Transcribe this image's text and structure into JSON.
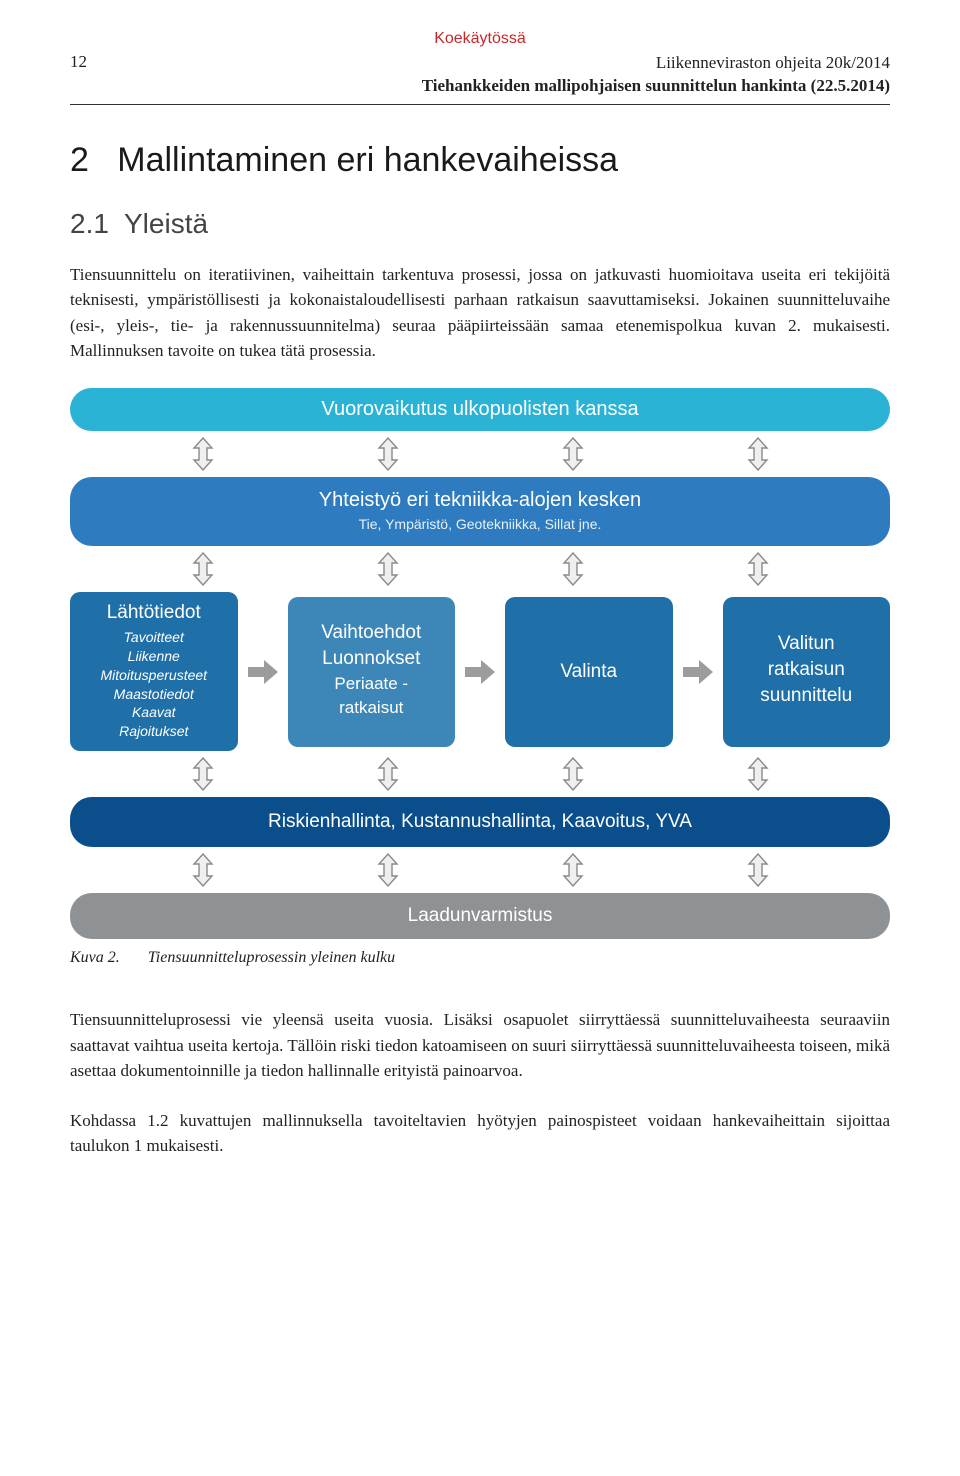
{
  "header": {
    "tag": "Koekäytössä",
    "tag_color": "#c82828",
    "page_number": "12",
    "pub_line1": "Liikenneviraston ohjeita 20k/2014",
    "pub_line2": "Tiehankkeiden mallipohjaisen suunnittelun hankinta (22.5.2014)"
  },
  "section": {
    "number": "2",
    "title": "Mallintaminen eri hankevaiheissa",
    "sub_number": "2.1",
    "sub_title": "Yleistä"
  },
  "body1": "Tiensuunnittelu on iteratiivinen, vaiheittain tarkentuva prosessi, jossa on jatkuvasti huomioitava useita eri tekijöitä teknisesti, ympäristöllisesti ja kokonaistaloudellisesti parhaan ratkaisun saavuttamiseksi. Jokainen suunnitteluvaihe (esi-, yleis-, tie- ja rakennussuunnitelma) seuraa pääpiirteissään samaa etenemispolkua kuvan 2. mukaisesti. Mallinnuksen tavoite on tukea tätä prosessia.",
  "diagram": {
    "colors": {
      "cyan": "#2bb3d6",
      "blue": "#2e7bbf",
      "box": "#1f6fa8",
      "darkblue": "#0a4f8c",
      "gray": "#8f9294",
      "boxsel": "#3d86b8",
      "h_arrow": "#9c9c9c",
      "v_arrow_fill": "#efefef",
      "v_arrow_stroke": "#8a8a8a"
    },
    "cyan_band": "Vuorovaikutus ulkopuolisten kanssa",
    "blue_band": "Yhteistyö eri tekniikka-alojen kesken",
    "blue_band_sub": "Tie, Ympäristö, Geotekniikka, Sillat jne.",
    "boxes": {
      "b1_title": "Lähtötiedot",
      "b1_lines": "Tavoitteet\nLiikenne\nMitoitusperusteet\nMaastotiedot\nKaavat\nRajoitukset",
      "b2_l1": "Vaihtoehdot",
      "b2_l2": "Luonnokset",
      "b2_l3": "Periaate -",
      "b2_l4": "ratkaisut",
      "b3_title": "Valinta",
      "b4_l1": "Valitun",
      "b4_l2": "ratkaisun",
      "b4_l3": "suunnittelu"
    },
    "darkblue_band": "Riskienhallinta, Kustannushallinta, Kaavoitus, YVA",
    "gray_band": "Laadunvarmistus"
  },
  "caption": {
    "label": "Kuva 2.",
    "text": "Tiensuunnitteluprosessin yleinen kulku"
  },
  "body2": "Tiensuunnitteluprosessi vie yleensä useita vuosia. Lisäksi osapuolet siirryttäessä suunnitteluvaiheesta seuraaviin saattavat vaihtua useita kertoja. Tällöin riski tiedon katoamiseen on suuri siirryttäessä suunnitteluvaiheesta toiseen, mikä asettaa dokumentoinnille ja tiedon hallinnalle erityistä painoarvoa.",
  "body3": "Kohdassa 1.2 kuvattujen mallinnuksella tavoiteltavien hyötyjen painospisteet voidaan hankevaiheittain sijoittaa taulukon 1 mukaisesti."
}
